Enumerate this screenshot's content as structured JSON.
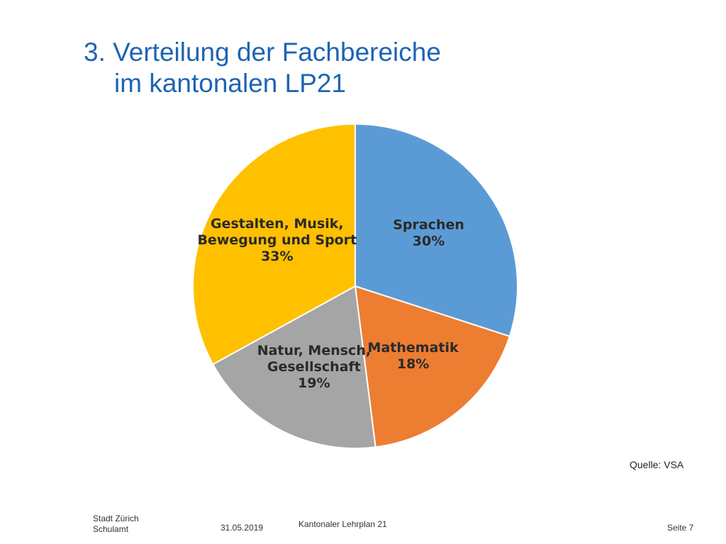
{
  "title": {
    "line1": "3. Verteilung der Fachbereiche",
    "line2": "im kantonalen LP21"
  },
  "chart_data": {
    "type": "pie",
    "slices": [
      {
        "name": "Sprachen",
        "label_lines": [
          "Sprachen",
          "30%"
        ],
        "value": 30,
        "color": "#5b9bd5"
      },
      {
        "name": "Mathematik",
        "label_lines": [
          "Mathematik",
          "18%"
        ],
        "value": 18,
        "color": "#ed7d31"
      },
      {
        "name": "Natur, Mensch, Gesellschaft",
        "label_lines": [
          "Natur, Mensch,",
          "Gesellschaft",
          "19%"
        ],
        "value": 19,
        "color": "#a5a5a5"
      },
      {
        "name": "Gestalten, Musik, Bewegung und Sport",
        "label_lines": [
          "Gestalten, Musik,",
          "Bewegung und Sport",
          "33%"
        ],
        "value": 33,
        "color": "#ffc000"
      }
    ]
  },
  "source": "Quelle: VSA",
  "footer": {
    "org_line1": "Stadt Zürich",
    "org_line2": "Schulamt",
    "date": "31.05.2019",
    "document": "Kantonaler Lehrplan 21",
    "page": "Seite 7"
  }
}
